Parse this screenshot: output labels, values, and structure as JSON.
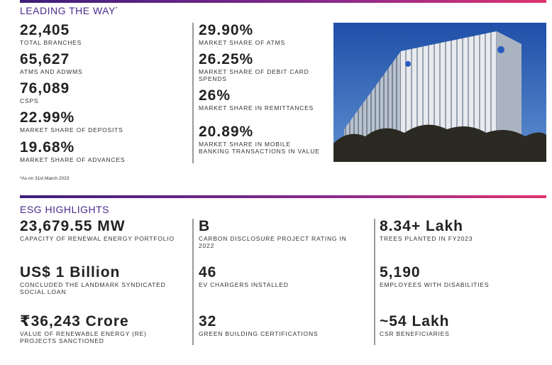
{
  "leading": {
    "title": "LEADING THE WAY",
    "marker": "*",
    "left": [
      {
        "value": "22,405",
        "label": "TOTAL BRANCHES"
      },
      {
        "value": "65,627",
        "label": "ATMs AND ADWMs"
      },
      {
        "value": "76,089",
        "label": "CSPs"
      },
      {
        "value": "22.99%",
        "label": "MARKET SHARE OF DEPOSITS"
      },
      {
        "value": "19.68%",
        "label": "MARKET SHARE OF ADVANCES"
      }
    ],
    "right": [
      {
        "value": "29.90%",
        "label": "MARKET SHARE OF ATMs"
      },
      {
        "value": "26.25%",
        "label": "MARKET SHARE OF DEBIT CARD SPENDS"
      },
      {
        "value": "26%",
        "label": "MARKET SHARE IN REMITTANCES"
      },
      {
        "value": "20.89%",
        "label": "MARKET SHARE IN MOBILE BANKING TRANSACTIONS IN VALUE"
      }
    ],
    "footnote": "*As on 31st March 2023"
  },
  "esg": {
    "title": "ESG HIGHLIGHTS",
    "columns": [
      [
        {
          "value": "23,679.55 MW",
          "label": "CAPACITY OF RENEWAL ENERGY PORTFOLIO"
        },
        {
          "value": "US$ 1 Billion",
          "label": "CONCLUDED THE LANDMARK SYNDICATED SOCIAL LOAN"
        },
        {
          "value": "₹36,243 Crore",
          "label": "VALUE OF RENEWABLE ENERGY (RE) PROJECTS SANCTIONED"
        }
      ],
      [
        {
          "value": "B",
          "label": "CARBON DISCLOSURE PROJECT RATING IN 2022"
        },
        {
          "value": "46",
          "label": "EV CHARGERS INSTALLED"
        },
        {
          "value": "32",
          "label": "GREEN BUILDING CERTIFICATIONS"
        }
      ],
      [
        {
          "value": "8.34+ Lakh",
          "label": "TREES PLANTED IN FY2023"
        },
        {
          "value": "5,190",
          "label": "EMPLOYEES WITH DISABILITIES"
        },
        {
          "value": "~54 Lakh",
          "label": "CSR BENEFICIARIES"
        }
      ]
    ]
  }
}
